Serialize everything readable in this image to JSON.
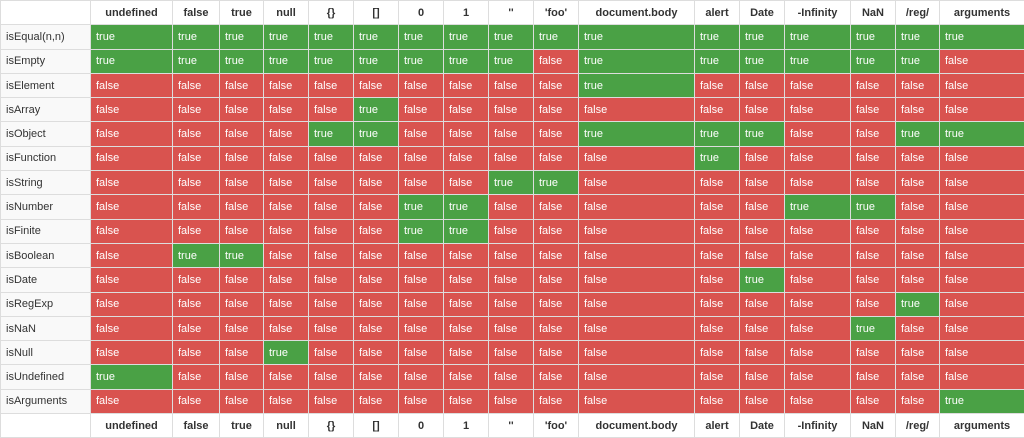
{
  "table": {
    "columns": [
      "undefined",
      "false",
      "true",
      "null",
      "{}",
      "[]",
      "0",
      "1",
      "''",
      "'foo'",
      "document.body",
      "alert",
      "Date",
      "-Infinity",
      "NaN",
      "/reg/",
      "arguments"
    ],
    "rows": [
      {
        "label": "isEqual(n,n)",
        "cells": [
          "true",
          "true",
          "true",
          "true",
          "true",
          "true",
          "true",
          "true",
          "true",
          "true",
          "true",
          "true",
          "true",
          "true",
          "true",
          "true",
          "true"
        ]
      },
      {
        "label": "isEmpty",
        "cells": [
          "true",
          "true",
          "true",
          "true",
          "true",
          "true",
          "true",
          "true",
          "true",
          "false",
          "true",
          "true",
          "true",
          "true",
          "true",
          "true",
          "false"
        ]
      },
      {
        "label": "isElement",
        "cells": [
          "false",
          "false",
          "false",
          "false",
          "false",
          "false",
          "false",
          "false",
          "false",
          "false",
          "true",
          "false",
          "false",
          "false",
          "false",
          "false",
          "false"
        ]
      },
      {
        "label": "isArray",
        "cells": [
          "false",
          "false",
          "false",
          "false",
          "false",
          "true",
          "false",
          "false",
          "false",
          "false",
          "false",
          "false",
          "false",
          "false",
          "false",
          "false",
          "false"
        ]
      },
      {
        "label": "isObject",
        "cells": [
          "false",
          "false",
          "false",
          "false",
          "true",
          "true",
          "false",
          "false",
          "false",
          "false",
          "true",
          "true",
          "true",
          "false",
          "false",
          "true",
          "true"
        ]
      },
      {
        "label": "isFunction",
        "cells": [
          "false",
          "false",
          "false",
          "false",
          "false",
          "false",
          "false",
          "false",
          "false",
          "false",
          "false",
          "true",
          "false",
          "false",
          "false",
          "false",
          "false"
        ]
      },
      {
        "label": "isString",
        "cells": [
          "false",
          "false",
          "false",
          "false",
          "false",
          "false",
          "false",
          "false",
          "true",
          "true",
          "false",
          "false",
          "false",
          "false",
          "false",
          "false",
          "false"
        ]
      },
      {
        "label": "isNumber",
        "cells": [
          "false",
          "false",
          "false",
          "false",
          "false",
          "false",
          "true",
          "true",
          "false",
          "false",
          "false",
          "false",
          "false",
          "true",
          "true",
          "false",
          "false"
        ]
      },
      {
        "label": "isFinite",
        "cells": [
          "false",
          "false",
          "false",
          "false",
          "false",
          "false",
          "true",
          "true",
          "false",
          "false",
          "false",
          "false",
          "false",
          "false",
          "false",
          "false",
          "false"
        ]
      },
      {
        "label": "isBoolean",
        "cells": [
          "false",
          "true",
          "true",
          "false",
          "false",
          "false",
          "false",
          "false",
          "false",
          "false",
          "false",
          "false",
          "false",
          "false",
          "false",
          "false",
          "false"
        ]
      },
      {
        "label": "isDate",
        "cells": [
          "false",
          "false",
          "false",
          "false",
          "false",
          "false",
          "false",
          "false",
          "false",
          "false",
          "false",
          "false",
          "true",
          "false",
          "false",
          "false",
          "false"
        ]
      },
      {
        "label": "isRegExp",
        "cells": [
          "false",
          "false",
          "false",
          "false",
          "false",
          "false",
          "false",
          "false",
          "false",
          "false",
          "false",
          "false",
          "false",
          "false",
          "false",
          "true",
          "false"
        ]
      },
      {
        "label": "isNaN",
        "cells": [
          "false",
          "false",
          "false",
          "false",
          "false",
          "false",
          "false",
          "false",
          "false",
          "false",
          "false",
          "false",
          "false",
          "false",
          "true",
          "false",
          "false"
        ]
      },
      {
        "label": "isNull",
        "cells": [
          "false",
          "false",
          "false",
          "true",
          "false",
          "false",
          "false",
          "false",
          "false",
          "false",
          "false",
          "false",
          "false",
          "false",
          "false",
          "false",
          "false"
        ]
      },
      {
        "label": "isUndefined",
        "cells": [
          "true",
          "false",
          "false",
          "false",
          "false",
          "false",
          "false",
          "false",
          "false",
          "false",
          "false",
          "false",
          "false",
          "false",
          "false",
          "false",
          "false"
        ]
      },
      {
        "label": "isArguments",
        "cells": [
          "false",
          "false",
          "false",
          "false",
          "false",
          "false",
          "false",
          "false",
          "false",
          "false",
          "false",
          "false",
          "false",
          "false",
          "false",
          "false",
          "true"
        ]
      }
    ]
  }
}
